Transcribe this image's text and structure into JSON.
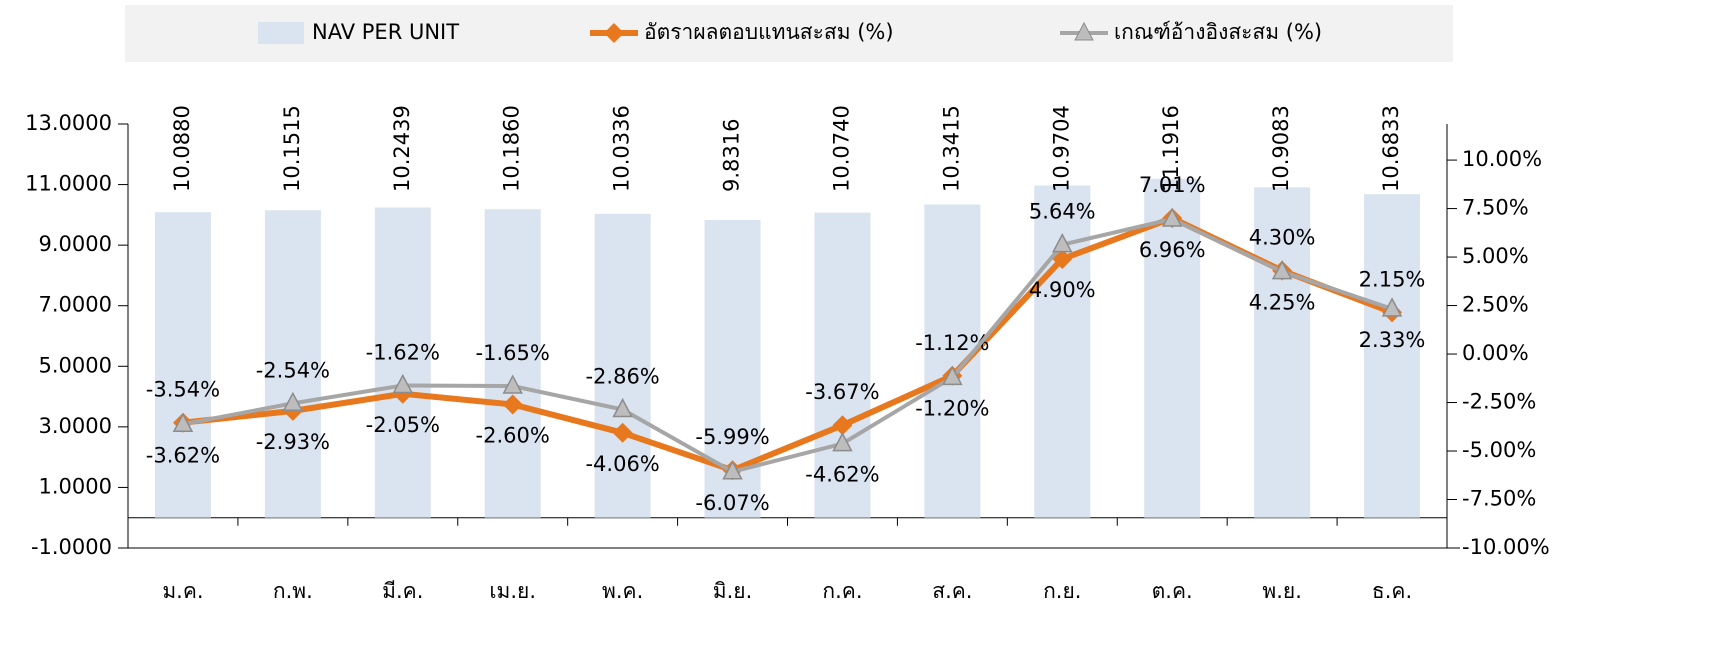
{
  "chart_data": {
    "type": "bar_line",
    "categories": [
      "ม.ค.",
      "ก.พ.",
      "มี.ค.",
      "เม.ย.",
      "พ.ค.",
      "มิ.ย.",
      "ก.ค.",
      "ส.ค.",
      "ก.ย.",
      "ต.ค.",
      "พ.ย.",
      "ธ.ค."
    ],
    "series": [
      {
        "name": "NAV PER UNIT",
        "color": "#dae3f0",
        "kind": "bar",
        "values": [
          10.088,
          10.1515,
          10.2439,
          10.186,
          10.0336,
          9.8316,
          10.074,
          10.3415,
          10.9704,
          11.1916,
          10.9083,
          10.6833
        ],
        "value_labels": [
          "10.0880",
          "10.1515",
          "10.2439",
          "10.1860",
          "10.0336",
          "9.8316",
          "10.0740",
          "10.3415",
          "10.9704",
          "11.1916",
          "10.9083",
          "10.6833"
        ]
      },
      {
        "name": "อัตราผลตอบแทนสะสม (%)",
        "color": "#e8781e",
        "kind": "line",
        "marker": "diamond",
        "axis": "y2",
        "values": [
          -3.54,
          -2.93,
          -2.05,
          -2.6,
          -4.06,
          -5.99,
          -3.67,
          -1.12,
          4.9,
          7.01,
          4.3,
          2.15
        ],
        "value_labels": [
          "-3.54%",
          "-2.93%",
          "-2.05%",
          "-2.60%",
          "-4.06%",
          "-5.99%",
          "-3.67%",
          "-1.12%",
          "4.90%",
          "7.01%",
          "4.30%",
          "2.15%"
        ]
      },
      {
        "name": "เกณฑ์อ้างอิงสะสม (%)",
        "color": "#a6a6a6",
        "kind": "line",
        "marker": "triangle",
        "axis": "y2",
        "values": [
          -3.62,
          -2.54,
          -1.62,
          -1.65,
          -2.86,
          -6.07,
          -4.62,
          -1.2,
          5.64,
          6.96,
          4.25,
          2.33
        ],
        "value_labels": [
          "-3.62%",
          "-2.54%",
          "-1.62%",
          "-1.65%",
          "-2.86%",
          "-6.07%",
          "-4.62%",
          "-1.20%",
          "5.64%",
          "6.96%",
          "4.25%",
          "2.33%"
        ]
      }
    ],
    "ylim": [
      -1,
      13
    ],
    "yticks": [
      {
        "value": -1,
        "label": "-1.0000"
      },
      {
        "value": 1,
        "label": "1.0000"
      },
      {
        "value": 3,
        "label": "3.0000"
      },
      {
        "value": 5,
        "label": "5.0000"
      },
      {
        "value": 7,
        "label": "7.0000"
      },
      {
        "value": 9,
        "label": "9.0000"
      },
      {
        "value": 11,
        "label": "11.0000"
      },
      {
        "value": 13,
        "label": "13.0000"
      }
    ],
    "y2lim": [
      -10,
      11.86
    ],
    "y2ticks": [
      {
        "value": -10,
        "label": "-10.00%"
      },
      {
        "value": -7.5,
        "label": "-7.50%"
      },
      {
        "value": -5,
        "label": "-5.00%"
      },
      {
        "value": -2.5,
        "label": "-2.50%"
      },
      {
        "value": 0,
        "label": "0.00%"
      },
      {
        "value": 2.5,
        "label": "2.50%"
      },
      {
        "value": 5,
        "label": "5.00%"
      },
      {
        "value": 7.5,
        "label": "7.50%"
      },
      {
        "value": 10,
        "label": "10.00%"
      }
    ],
    "legend": "top"
  }
}
